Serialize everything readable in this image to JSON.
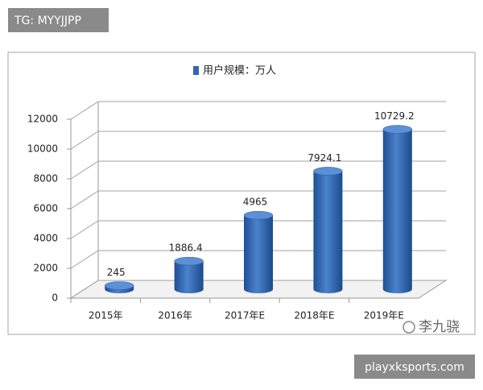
{
  "chart_data": {
    "type": "bar3d",
    "legend": "用户规模：万人",
    "color": "#3566ad",
    "categories": [
      "2015年",
      "2016年",
      "2017年E",
      "2018年E",
      "2019年E"
    ],
    "values": [
      245,
      1886.4,
      4965,
      7924.1,
      10729.2
    ],
    "ylim": [
      0,
      12000
    ],
    "yticks": [
      0,
      2000,
      4000,
      6000,
      8000,
      10000,
      12000
    ],
    "grid": true
  },
  "watermarks": {
    "top_left": "TG: MYYJJPP",
    "signature": "李九骁",
    "bottom_right": "playxksports.com"
  }
}
